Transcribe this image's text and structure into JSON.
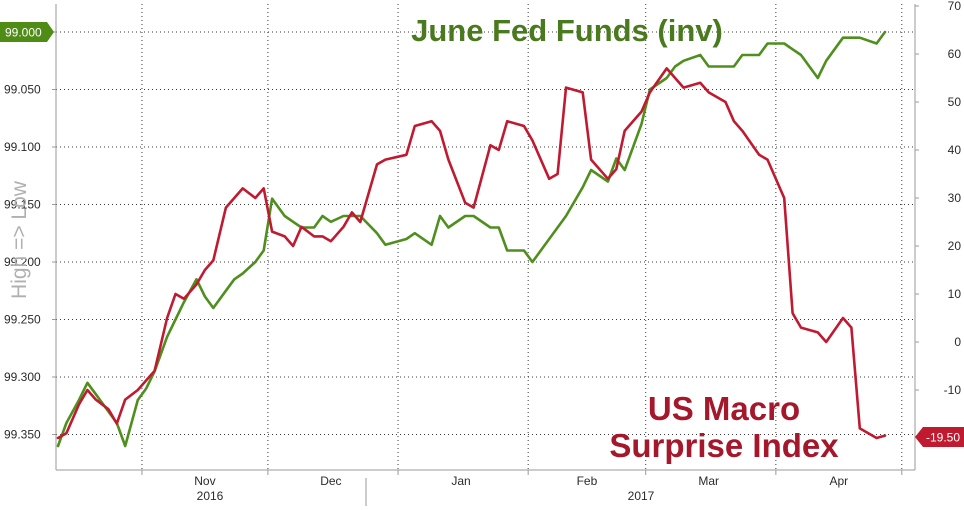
{
  "chart_data": {
    "type": "line",
    "title_fed": "June Fed Funds (inv)",
    "title_macro_line1": "US Macro",
    "title_macro_line2": "Surprise Index",
    "ylabel_left": "High => Low",
    "left_axis": {
      "ticks": [
        "99.000",
        "99.050",
        "99.100",
        "99.150",
        "99.200",
        "99.250",
        "99.300",
        "99.350"
      ],
      "range": [
        99.0,
        99.35
      ],
      "inverted": true
    },
    "right_axis": {
      "ticks": [
        "70",
        "60",
        "50",
        "40",
        "30",
        "20",
        "10",
        "0",
        "-10"
      ],
      "range": [
        -20,
        70
      ]
    },
    "x_axis": {
      "months": [
        "Nov",
        "Dec",
        "Jan",
        "Feb",
        "Mar",
        "Apr"
      ],
      "years": [
        "2016",
        "2017"
      ]
    },
    "grid": true,
    "colors": {
      "fed": "#4f8f1e",
      "macro": "#c01a31",
      "fed_badge": "#4e8c16",
      "macro_badge": "#c01a31"
    },
    "last_value_fed": "99.000",
    "last_value_macro": "-19.50",
    "series": [
      {
        "name": "June Fed Funds (inv)",
        "axis": "left",
        "x": [
          "2016-10-12",
          "2016-10-14",
          "2016-10-17",
          "2016-10-19",
          "2016-10-21",
          "2016-10-24",
          "2016-10-26",
          "2016-10-28",
          "2016-10-31",
          "2016-11-02",
          "2016-11-04",
          "2016-11-07",
          "2016-11-09",
          "2016-11-11",
          "2016-11-14",
          "2016-11-16",
          "2016-11-18",
          "2016-11-21",
          "2016-11-23",
          "2016-11-25",
          "2016-11-28",
          "2016-11-30",
          "2016-12-02",
          "2016-12-05",
          "2016-12-07",
          "2016-12-09",
          "2016-12-12",
          "2016-12-14",
          "2016-12-16",
          "2016-12-19",
          "2016-12-21",
          "2016-12-23",
          "2016-12-27",
          "2016-12-29",
          "2017-01-03",
          "2017-01-05",
          "2017-01-09",
          "2017-01-11",
          "2017-01-13",
          "2017-01-17",
          "2017-01-19",
          "2017-01-23",
          "2017-01-25",
          "2017-01-27",
          "2017-01-31",
          "2017-02-02",
          "2017-02-06",
          "2017-02-08",
          "2017-02-10",
          "2017-02-14",
          "2017-02-16",
          "2017-02-20",
          "2017-02-22",
          "2017-02-24",
          "2017-02-28",
          "2017-03-02",
          "2017-03-06",
          "2017-03-08",
          "2017-03-10",
          "2017-03-14",
          "2017-03-16",
          "2017-03-20",
          "2017-03-22",
          "2017-03-24",
          "2017-03-28",
          "2017-03-30",
          "2017-04-03",
          "2017-04-05",
          "2017-04-07",
          "2017-04-11",
          "2017-04-13",
          "2017-04-17",
          "2017-04-19",
          "2017-04-21",
          "2017-04-25",
          "2017-04-27"
        ],
        "values": [
          99.36,
          99.34,
          99.32,
          99.305,
          99.315,
          99.33,
          99.34,
          99.36,
          99.32,
          99.31,
          99.295,
          99.265,
          99.25,
          99.235,
          99.215,
          99.23,
          99.24,
          99.225,
          99.215,
          99.21,
          99.2,
          99.19,
          99.145,
          99.16,
          99.165,
          99.17,
          99.17,
          99.16,
          99.165,
          99.16,
          99.16,
          99.16,
          99.175,
          99.185,
          99.18,
          99.175,
          99.185,
          99.16,
          99.17,
          99.16,
          99.16,
          99.17,
          99.17,
          99.19,
          99.19,
          99.2,
          99.18,
          99.17,
          99.16,
          99.135,
          99.12,
          99.13,
          99.11,
          99.12,
          99.08,
          99.05,
          99.04,
          99.03,
          99.025,
          99.02,
          99.03,
          99.03,
          99.03,
          99.02,
          99.02,
          99.01,
          99.01,
          99.015,
          99.02,
          99.04,
          99.025,
          99.005,
          99.005,
          99.005,
          99.01,
          99.0
        ]
      },
      {
        "name": "US Macro Surprise Index",
        "axis": "right",
        "x": [
          "2016-10-12",
          "2016-10-14",
          "2016-10-17",
          "2016-10-19",
          "2016-10-21",
          "2016-10-24",
          "2016-10-26",
          "2016-10-28",
          "2016-10-31",
          "2016-11-02",
          "2016-11-04",
          "2016-11-07",
          "2016-11-09",
          "2016-11-11",
          "2016-11-14",
          "2016-11-16",
          "2016-11-18",
          "2016-11-21",
          "2016-11-23",
          "2016-11-25",
          "2016-11-28",
          "2016-11-30",
          "2016-12-02",
          "2016-12-05",
          "2016-12-07",
          "2016-12-09",
          "2016-12-12",
          "2016-12-14",
          "2016-12-16",
          "2016-12-19",
          "2016-12-21",
          "2016-12-23",
          "2016-12-27",
          "2016-12-29",
          "2017-01-03",
          "2017-01-05",
          "2017-01-09",
          "2017-01-11",
          "2017-01-13",
          "2017-01-17",
          "2017-01-19",
          "2017-01-23",
          "2017-01-25",
          "2017-01-27",
          "2017-01-31",
          "2017-02-02",
          "2017-02-06",
          "2017-02-08",
          "2017-02-10",
          "2017-02-14",
          "2017-02-16",
          "2017-02-20",
          "2017-02-22",
          "2017-02-24",
          "2017-02-28",
          "2017-03-02",
          "2017-03-06",
          "2017-03-08",
          "2017-03-10",
          "2017-03-14",
          "2017-03-16",
          "2017-03-20",
          "2017-03-22",
          "2017-03-24",
          "2017-03-28",
          "2017-03-30",
          "2017-04-03",
          "2017-04-05",
          "2017-04-07",
          "2017-04-11",
          "2017-04-13",
          "2017-04-17",
          "2017-04-19",
          "2017-04-21",
          "2017-04-25",
          "2017-04-27"
        ],
        "values": [
          -20,
          -19,
          -13,
          -10,
          -12,
          -14,
          -17,
          -12,
          -10,
          -8,
          -6,
          5,
          10,
          9,
          12,
          15,
          17,
          28,
          30,
          32,
          30,
          32,
          23,
          22,
          20,
          24,
          22,
          22,
          21,
          24,
          27,
          25,
          37,
          38,
          39,
          45,
          46,
          44,
          38,
          29,
          28,
          41,
          40,
          46,
          45,
          42,
          34,
          35,
          53,
          52,
          38,
          34,
          36,
          44,
          48,
          52,
          57,
          55,
          53,
          54,
          52,
          50,
          46,
          44,
          39,
          38,
          30,
          6,
          3,
          2,
          0,
          5,
          3,
          -18,
          -20,
          -19.5
        ]
      }
    ]
  }
}
